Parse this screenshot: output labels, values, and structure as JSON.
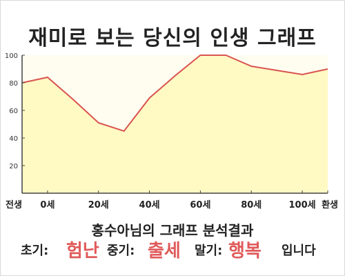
{
  "title": "재미로 보는 당신의 인생 그래프",
  "analysis_title": "홍수아님의 그래프 분석결과",
  "summary": {
    "early_label": "초기:",
    "early_value": "험난",
    "mid_label": "중기:",
    "mid_value": "출세",
    "late_label": "말기:",
    "late_value": "행복",
    "ending": "입니다"
  },
  "colors": {
    "line": "#d9534f",
    "fill": "#fff9c4",
    "plot_bg": "#fffdf0",
    "accent_text": "#e05a5a"
  },
  "chart_data": {
    "type": "area",
    "x_ticks": [
      "전생",
      "0세",
      "20세",
      "40세",
      "60세",
      "80세",
      "100세",
      "환생"
    ],
    "y_ticks": [
      "20",
      "40",
      "60",
      "80",
      "100"
    ],
    "ylim": [
      0,
      100
    ],
    "series": [
      {
        "x": [
          "전생",
          "0세",
          "10세",
          "20세",
          "30세",
          "40세",
          "50세",
          "60세",
          "70세",
          "80세",
          "90세",
          "100세",
          "환생"
        ],
        "values": [
          80,
          84,
          68,
          51,
          45,
          69,
          85,
          100,
          100,
          92,
          89,
          86,
          90
        ]
      }
    ],
    "grid": false
  }
}
